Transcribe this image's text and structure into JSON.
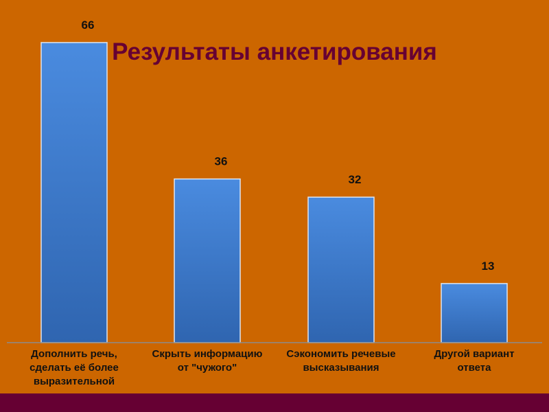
{
  "slide": {
    "background_color": "#CC6600",
    "footer_color": "#660033"
  },
  "chart_data": {
    "type": "bar",
    "title": "Результаты анкетирования",
    "title_color": "#660033",
    "categories": [
      [
        "Дополнить речь,",
        "сделать её более",
        "выразительной"
      ],
      [
        "Скрыть информацию",
        "от \"чужого\""
      ],
      [
        "Сэкономить речевые",
        "высказывания"
      ],
      [
        "Другой вариант",
        "ответа"
      ]
    ],
    "values": [
      66,
      36,
      32,
      13
    ],
    "data_labels": [
      "66",
      "36",
      "32",
      "13"
    ],
    "bar_color": "#3D7CD0",
    "ylim": [
      0,
      66
    ],
    "grid": false,
    "legend": "none"
  }
}
